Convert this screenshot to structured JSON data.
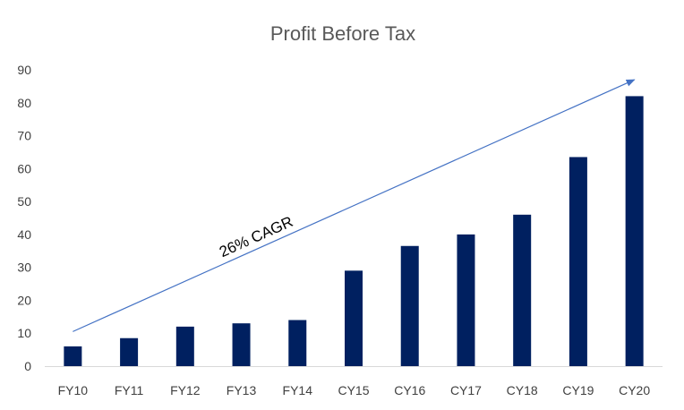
{
  "chart_data": {
    "type": "bar",
    "title": "Profit Before Tax",
    "xlabel": "",
    "ylabel": "",
    "categories": [
      "FY10",
      "FY11",
      "FY12",
      "FY13",
      "FY14",
      "CY15",
      "CY16",
      "CY17",
      "CY18",
      "CY19",
      "CY20"
    ],
    "values": [
      6,
      8.5,
      12,
      13,
      14,
      29,
      36.5,
      40,
      46,
      63.5,
      82
    ],
    "ylim": [
      0,
      90
    ],
    "yticks": [
      0,
      10,
      20,
      30,
      40,
      50,
      60,
      70,
      80,
      90
    ],
    "grid": false,
    "legend": "none",
    "bar_color": "#002060",
    "annotation": {
      "text": "26% CAGR",
      "arrow_color": "#4472C4",
      "arrow_from": {
        "category": "FY10",
        "value": 10.5
      },
      "arrow_to": {
        "category": "CY20",
        "value": 87
      }
    }
  }
}
